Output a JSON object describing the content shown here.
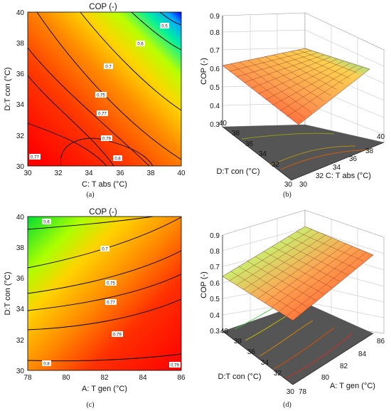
{
  "panel_labels": [
    "(a)",
    "(b)",
    "(c)",
    "(d)"
  ],
  "chart_data": [
    {
      "panel": "(a)",
      "type": "heatmap",
      "subtype": "contour",
      "title": "COP (-)",
      "xlabel": "C: T abs (°C)",
      "ylabel": "D:T con (°C)",
      "xlim": [
        30,
        40
      ],
      "ylim": [
        30,
        40
      ],
      "xticks": [
        "30",
        "32",
        "34",
        "36",
        "38",
        "40"
      ],
      "yticks": [
        "30",
        "32",
        "34",
        "36",
        "38",
        "40"
      ],
      "contour_labels": [
        "0.5",
        "0.6",
        "0.7",
        "0.75",
        "0.77",
        "0.79",
        "0.8",
        "0.77"
      ],
      "colors": {
        "high": "#ff0000",
        "mid": "#ffcc00",
        "low": "#0000ff"
      }
    },
    {
      "panel": "(b)",
      "type": "surface",
      "zlabel": "COP (-)",
      "xlabel": "C: T abs (°C)",
      "ylabel": "D:T con (°C)",
      "zticks": [
        "0.3",
        "0.4",
        "0.5",
        "0.6",
        "0.7",
        "0.8",
        "0.9"
      ],
      "xticks": [
        "30",
        "32",
        "34",
        "36",
        "38",
        "40"
      ],
      "yticks": [
        "30",
        "32",
        "34",
        "36",
        "38",
        "40"
      ],
      "zlim": [
        0.3,
        0.9
      ]
    },
    {
      "panel": "(c)",
      "type": "heatmap",
      "subtype": "contour",
      "title": "COP (-)",
      "xlabel": "A: T gen (°C)",
      "ylabel": "D:T con (°C)",
      "xlim": [
        78,
        86
      ],
      "ylim": [
        30,
        40
      ],
      "xticks": [
        "78",
        "80",
        "82",
        "84",
        "86"
      ],
      "yticks": [
        "30",
        "32",
        "34",
        "36",
        "38",
        "40"
      ],
      "contour_labels": [
        "0.6",
        "0.7",
        "0.75",
        "0.77",
        "0.79",
        "0.8",
        "0.79"
      ],
      "colors": {
        "high": "#ff0000",
        "mid": "#ffcc00",
        "low": "#00cc44"
      }
    },
    {
      "panel": "(d)",
      "type": "surface",
      "zlabel": "COP (-)",
      "xlabel": "A: T gen (°C)",
      "ylabel": "D:T con (°C)",
      "zticks": [
        "0.3",
        "0.4",
        "0.5",
        "0.6",
        "0.7",
        "0.8",
        "0.9"
      ],
      "xticks": [
        "78",
        "80",
        "82",
        "84",
        "86"
      ],
      "yticks": [
        "30",
        "32",
        "34",
        "36",
        "38",
        "40"
      ],
      "zlim": [
        0.3,
        0.9
      ]
    }
  ]
}
